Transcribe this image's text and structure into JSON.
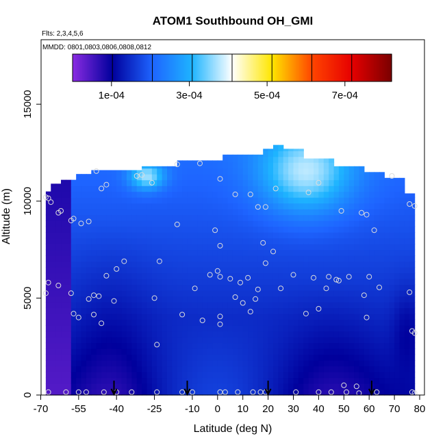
{
  "chart_data": {
    "type": "heatmap",
    "title": "ATOM1 Southbound OH_GMI",
    "flights_label": "Flts: 2,3,4,5,6",
    "dates_label": "MMDD: 0801,0803,0806,0808,0812",
    "xlabel": "Latitude (deg N)",
    "ylabel": "Altitude (m)",
    "xlim": [
      -70,
      82
    ],
    "ylim": [
      0,
      17500
    ],
    "x_ticks": [
      -70,
      -55,
      -40,
      -25,
      -10,
      0,
      10,
      20,
      30,
      40,
      50,
      60,
      70,
      80
    ],
    "x_tick_labels": [
      "-70",
      "-55",
      "-40",
      "-25",
      "-10",
      "0",
      "10",
      "20",
      "30",
      "40",
      "50",
      "60",
      "70",
      "80"
    ],
    "y_ticks": [
      0,
      5000,
      10000,
      15000
    ],
    "y_tick_labels": [
      "0",
      "5000",
      "10000",
      "15000"
    ],
    "colorbar": {
      "range": [
        0,
        0.00082
      ],
      "ticks": [
        0.0001,
        0.0003,
        0.0005,
        0.0007
      ],
      "tick_labels": [
        "1e-04",
        "3e-04",
        "5e-04",
        "7e-04"
      ],
      "colors": [
        "#8a2be2",
        "#00009c",
        "#1e64ff",
        "#1eb4ff",
        "#ffffff",
        "#ffe600",
        "#ff4500",
        "#e60000",
        "#7a0000"
      ]
    },
    "profile_markers_lat": [
      -41,
      -12,
      20,
      61
    ],
    "points": [
      [
        -67,
        10150
      ],
      [
        -66,
        9950
      ],
      [
        -63,
        9400
      ],
      [
        -62,
        9500
      ],
      [
        -58,
        9000
      ],
      [
        -57,
        9100
      ],
      [
        -54,
        8850
      ],
      [
        -51,
        8950
      ],
      [
        -48,
        11550
      ],
      [
        -46,
        10650
      ],
      [
        -44,
        10850
      ],
      [
        -32,
        11300
      ],
      [
        -30,
        11350
      ],
      [
        -26,
        10950
      ],
      [
        -16,
        11900
      ],
      [
        -7,
        11950
      ],
      [
        1,
        11150
      ],
      [
        7,
        10350
      ],
      [
        13,
        10350
      ],
      [
        16,
        9700
      ],
      [
        19,
        9700
      ],
      [
        23,
        10650
      ],
      [
        36,
        10450
      ],
      [
        40,
        10950
      ],
      [
        49,
        9500
      ],
      [
        57,
        9400
      ],
      [
        59,
        9300
      ],
      [
        62,
        8500
      ],
      [
        69,
        11300
      ],
      [
        76,
        9850
      ],
      [
        78,
        9750
      ],
      [
        -68,
        10200
      ],
      [
        -67,
        5800
      ],
      [
        -68,
        5250
      ],
      [
        -63,
        5650
      ],
      [
        -58,
        5250
      ],
      [
        -57,
        4200
      ],
      [
        -55,
        4000
      ],
      [
        -51,
        4950
      ],
      [
        -49,
        4150
      ],
      [
        -49,
        5150
      ],
      [
        -47,
        5100
      ],
      [
        -46,
        3700
      ],
      [
        -44,
        6150
      ],
      [
        -41,
        4850
      ],
      [
        -40,
        6500
      ],
      [
        -37,
        6900
      ],
      [
        -25,
        5000
      ],
      [
        -23,
        6900
      ],
      [
        -16,
        8800
      ],
      [
        -14,
        4150
      ],
      [
        -9,
        5500
      ],
      [
        -6,
        3850
      ],
      [
        -3,
        6200
      ],
      [
        -1,
        8500
      ],
      [
        0,
        6400
      ],
      [
        1,
        6100
      ],
      [
        1,
        7700
      ],
      [
        1,
        4050
      ],
      [
        1,
        3650
      ],
      [
        5,
        6000
      ],
      [
        7,
        5050
      ],
      [
        9,
        5800
      ],
      [
        10,
        4750
      ],
      [
        12,
        6050
      ],
      [
        13,
        4300
      ],
      [
        15,
        4950
      ],
      [
        16,
        5450
      ],
      [
        18,
        7850
      ],
      [
        19,
        6800
      ],
      [
        22,
        7400
      ],
      [
        25,
        5500
      ],
      [
        30,
        6200
      ],
      [
        35,
        4200
      ],
      [
        38,
        6050
      ],
      [
        40,
        4450
      ],
      [
        43,
        5500
      ],
      [
        44,
        6100
      ],
      [
        47,
        5950
      ],
      [
        48,
        5900
      ],
      [
        52,
        6100
      ],
      [
        58,
        5150
      ],
      [
        59,
        4000
      ],
      [
        60,
        6100
      ],
      [
        64,
        5550
      ],
      [
        76,
        5300
      ],
      [
        77,
        3300
      ],
      [
        78,
        3200
      ],
      [
        -24,
        2600
      ],
      [
        -67,
        150
      ],
      [
        -60,
        150
      ],
      [
        -55,
        150
      ],
      [
        -52,
        150
      ],
      [
        -45,
        150
      ],
      [
        -40,
        150
      ],
      [
        -34,
        150
      ],
      [
        -24,
        150
      ],
      [
        -14,
        150
      ],
      [
        -10,
        150
      ],
      [
        1,
        150
      ],
      [
        3,
        150
      ],
      [
        8,
        150
      ],
      [
        14,
        150
      ],
      [
        17,
        150
      ],
      [
        19,
        150
      ],
      [
        31,
        150
      ],
      [
        40,
        150
      ],
      [
        45,
        150
      ],
      [
        51,
        150
      ],
      [
        56,
        100
      ],
      [
        63,
        150
      ],
      [
        77,
        150
      ],
      [
        78,
        100
      ],
      [
        50,
        500
      ],
      [
        55,
        450
      ]
    ]
  }
}
